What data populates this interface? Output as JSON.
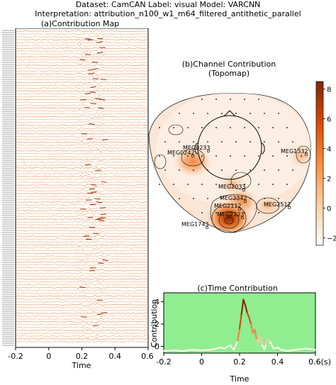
{
  "header": {
    "line1": "Dataset: CamCAN   Label: visual   Model: VARCNN",
    "line2": "Interpretation: attribution_n100_w1_m64_filtered_antithetic_parallel"
  },
  "colors": {
    "heat_low": "#ffffff",
    "heat_mid": "#f4a66a",
    "heat_high": "#7f2704",
    "time_bg": "#90ee90"
  },
  "chart_data": [
    {
      "id": "contribution-map",
      "type": "heatmap",
      "title": "(a)Contribution Map",
      "xlabel": "Time",
      "xlim": [
        -0.2,
        0.6
      ],
      "x_ticks": [
        "-0.2",
        "0",
        "0.2",
        "0.4",
        "0.6(s)"
      ],
      "ylabel": "",
      "rows": "MEG channels (unreadable, overlapping labels)",
      "peak_window": [
        0.2,
        0.3
      ]
    },
    {
      "id": "channel-contribution",
      "type": "heatmap",
      "title": "(b)Channel Contribution",
      "subtitle": "(Topomap)",
      "colorbar": {
        "ticks": [
          8,
          6,
          4,
          2,
          0,
          -2
        ],
        "range": [
          -2.5,
          8.5
        ]
      },
      "channels": [
        {
          "name": "MEG0233",
          "value": 3.5
        },
        {
          "name": "MEG0242",
          "value": 3.0
        },
        {
          "name": "MEG1332",
          "value": 1.0
        },
        {
          "name": "MEG2033",
          "value": 2.0
        },
        {
          "name": "MEG2342",
          "value": 2.5
        },
        {
          "name": "MEG2112",
          "value": 4.0
        },
        {
          "name": "MEG2512",
          "value": 2.0
        },
        {
          "name": "MEG2123",
          "value": 8.0
        },
        {
          "name": "MEG1743",
          "value": 1.0
        }
      ]
    },
    {
      "id": "time-contribution",
      "type": "line",
      "title": "(c)Time Contribution",
      "xlabel": "Time",
      "ylabel": "Contribution",
      "xlim": [
        -0.2,
        0.6
      ],
      "ylim": [
        -0.6,
        4.8
      ],
      "x_ticks": [
        "-0.2",
        "0",
        "0.2",
        "0.4",
        "0.6(s)"
      ],
      "y_ticks": [
        0,
        2,
        4
      ],
      "x": [
        -0.2,
        -0.15,
        -0.1,
        -0.05,
        0.0,
        0.05,
        0.1,
        0.12,
        0.15,
        0.17,
        0.19,
        0.2,
        0.21,
        0.22,
        0.23,
        0.24,
        0.25,
        0.26,
        0.27,
        0.28,
        0.29,
        0.3,
        0.31,
        0.32,
        0.33,
        0.34,
        0.35,
        0.36,
        0.38,
        0.4,
        0.42,
        0.45,
        0.5,
        0.55,
        0.6
      ],
      "y": [
        -0.4,
        -0.35,
        -0.4,
        -0.3,
        -0.35,
        -0.3,
        -0.1,
        -0.2,
        0.1,
        -0.3,
        0.5,
        1.6,
        2.9,
        4.2,
        3.7,
        3.0,
        2.6,
        2.0,
        1.2,
        1.5,
        0.6,
        0.3,
        0.9,
        0.1,
        -0.3,
        0.2,
        0.7,
        0.4,
        -0.2,
        -0.1,
        -0.3,
        -0.4,
        -0.3,
        -0.2,
        -0.3
      ]
    }
  ]
}
